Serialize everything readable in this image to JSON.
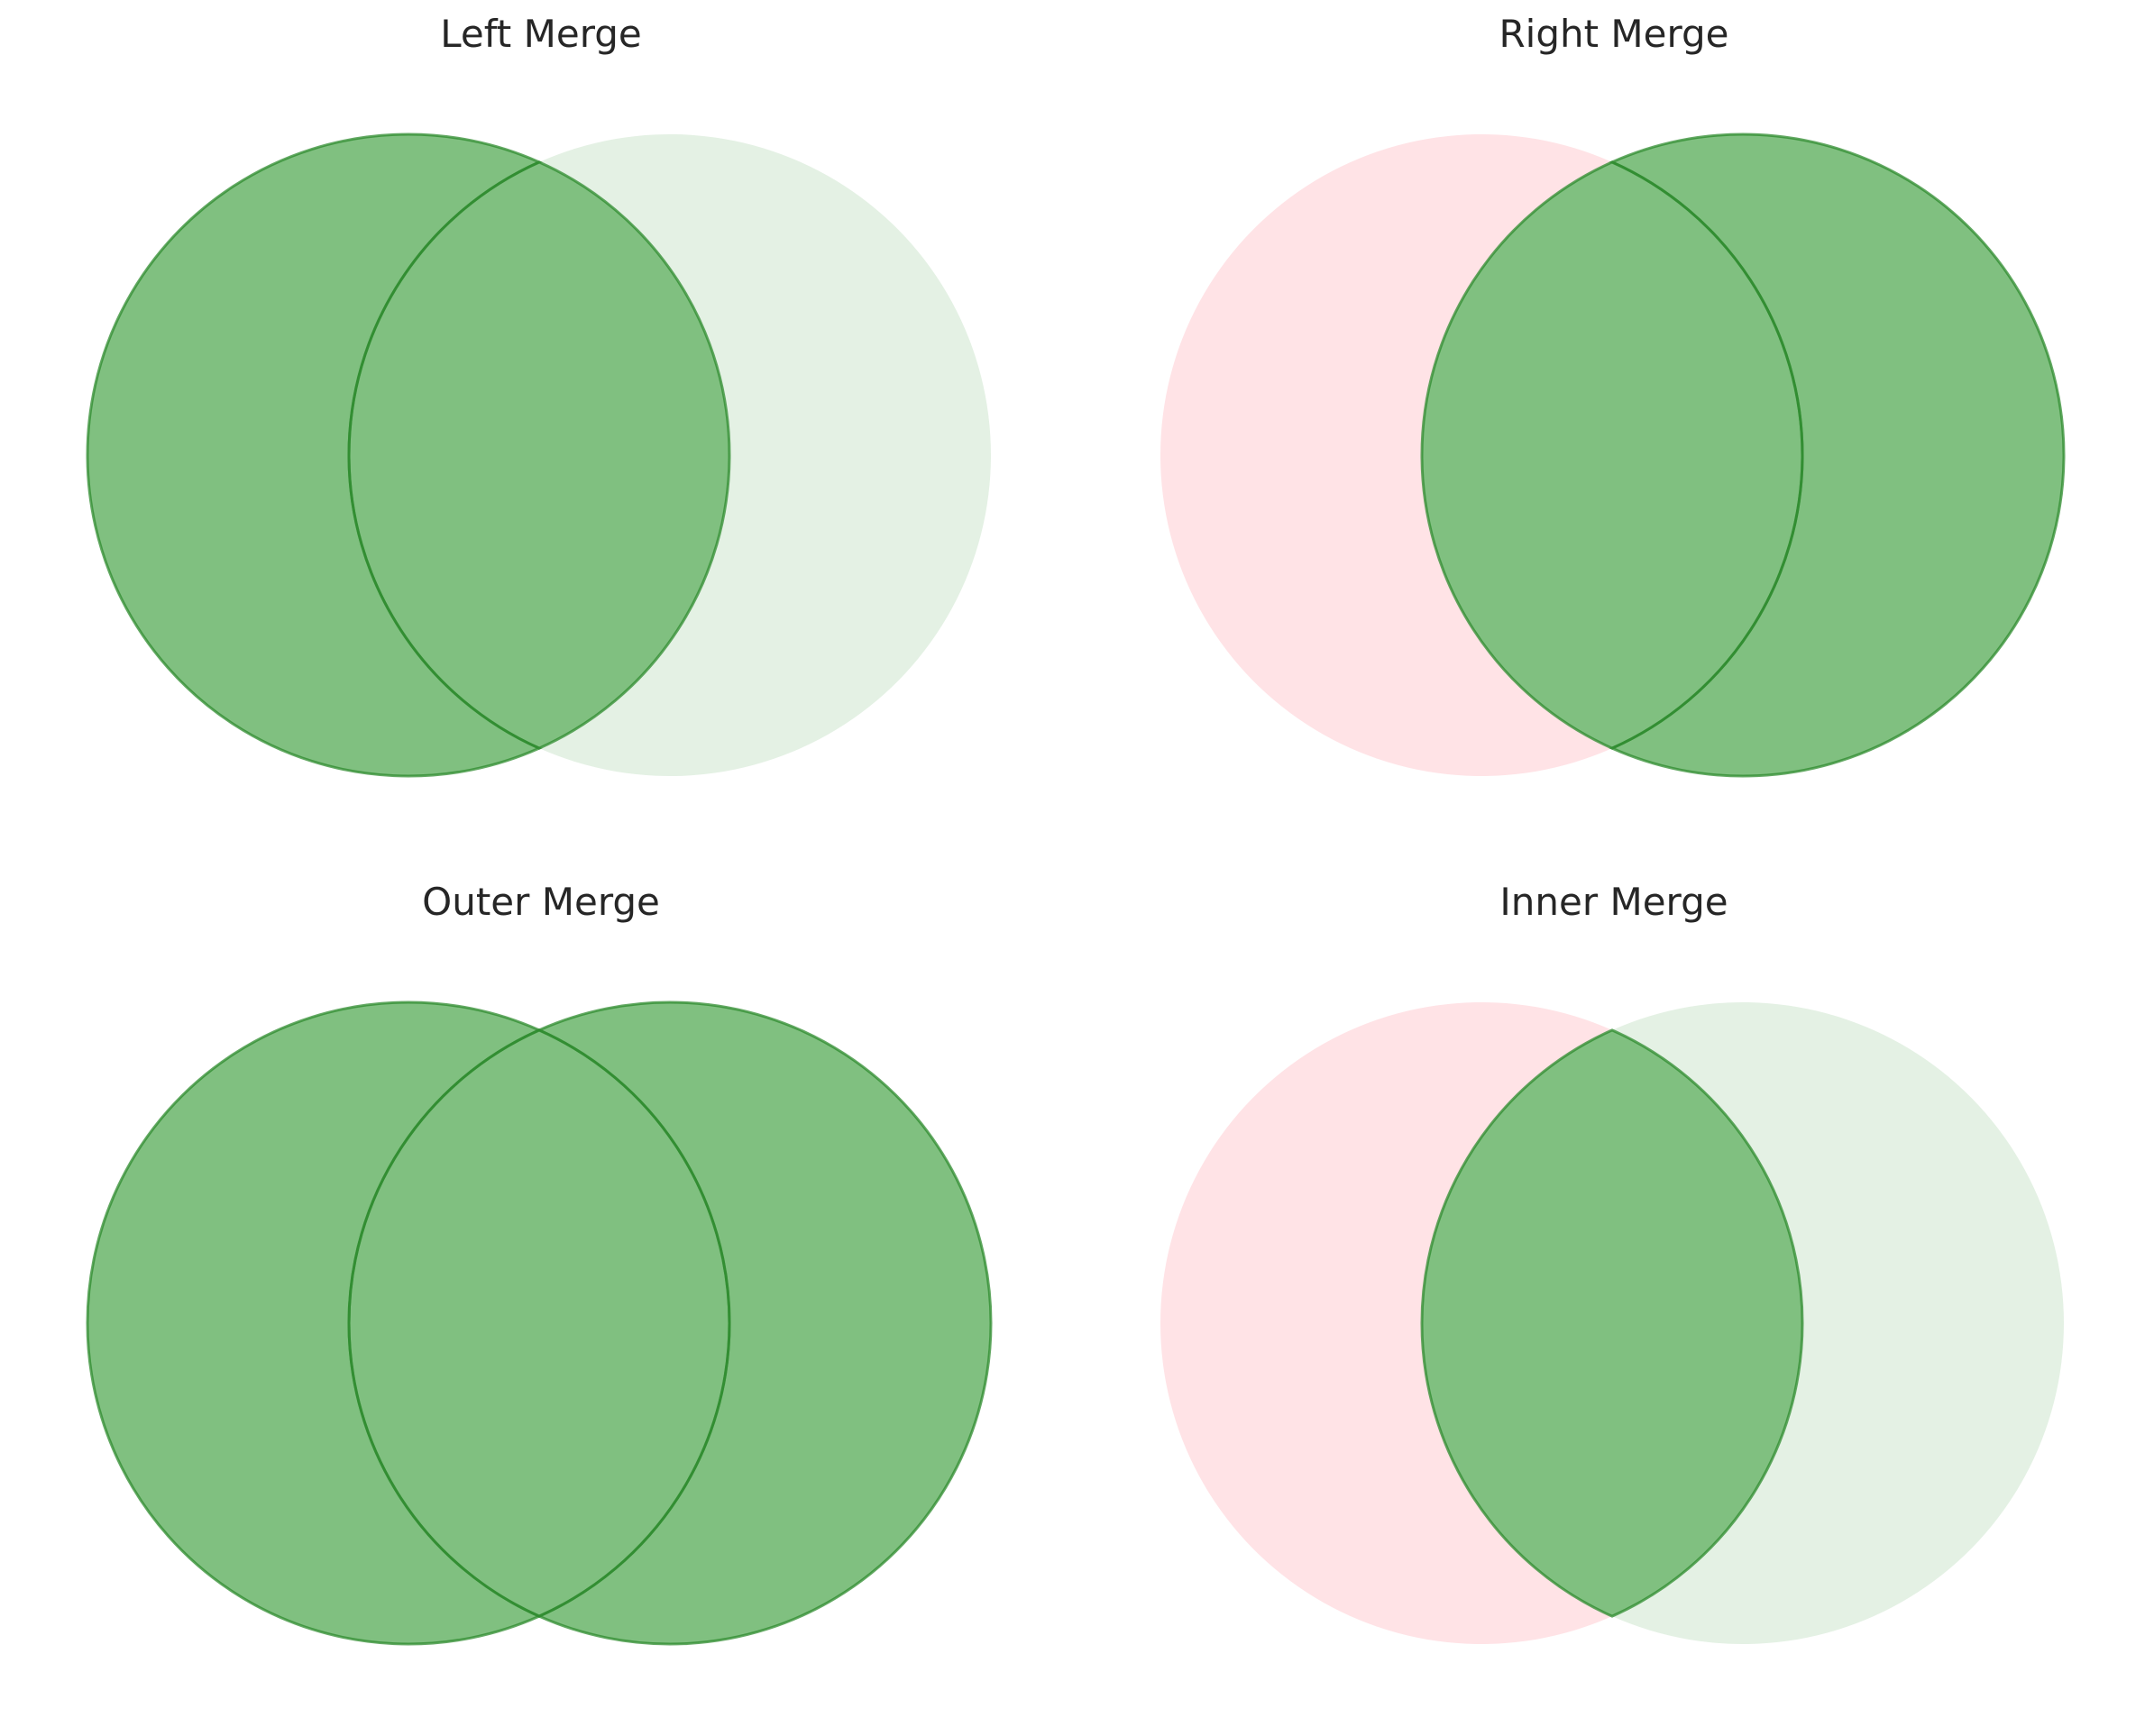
{
  "colors": {
    "included": "#80c080",
    "included_stroke": "#2e8b2e",
    "left_excluded": "#ffe3e6",
    "right_excluded": "#e4f1e4",
    "title": "#262626"
  },
  "diagrams": [
    {
      "key": "left",
      "title": "Left Merge",
      "include_left_only": true,
      "include_overlap": true,
      "include_right_only": false
    },
    {
      "key": "right",
      "title": "Right Merge",
      "include_left_only": false,
      "include_overlap": true,
      "include_right_only": true
    },
    {
      "key": "outer",
      "title": "Outer Merge",
      "include_left_only": true,
      "include_overlap": true,
      "include_right_only": true
    },
    {
      "key": "inner",
      "title": "Inner Merge",
      "include_left_only": false,
      "include_overlap": true,
      "include_right_only": false
    }
  ]
}
